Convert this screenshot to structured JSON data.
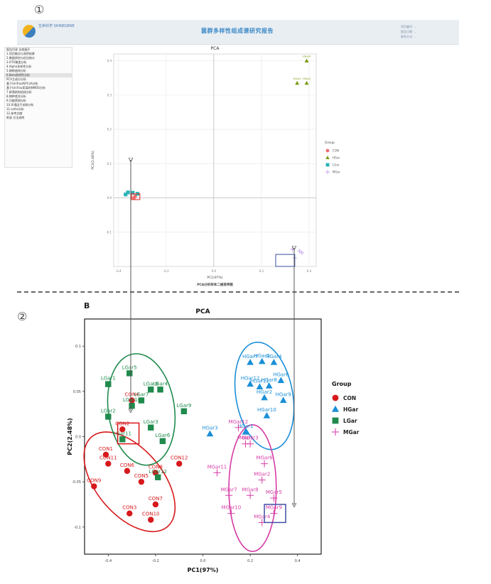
{
  "annotations": {
    "marker_one": "①",
    "marker_two": "②",
    "b_label": "B"
  },
  "header": {
    "company": "生命科学 SHINEGENE",
    "report_title": "菌群多样性组成谱研究报告",
    "info_lines": [
      "项目编号: ...",
      "报告日期: ...",
      "联系方式: ..."
    ]
  },
  "sidebar": {
    "items": [
      "报告目录 全部展开",
      "1.项目概况与测序结果",
      "2.数据质控与优化统计",
      "3.OTU聚类分析",
      "4.Alpha多样性分析",
      "5.稀释曲线分析",
      "6.Beta多样性分析",
      "PCA主成分分析",
      "基于Unifrac的PCoA分析",
      "基于UniFrac距离的NMDS分析",
      "7.群落结构组成分析",
      "8.物种差异分析",
      "9.功能预测分析",
      "10.环境因子关联分析",
      "11.Lefse分析",
      "12.参考文献",
      "附录 方法说明"
    ],
    "active_index": 6
  },
  "colors": {
    "CON": "#d7191c",
    "HGar": "#1a8fd8",
    "LGar": "#1f8a4c",
    "MGar": "#d63ba4",
    "top_con": "#f26d6d",
    "top_hgar": "#7a9c12",
    "top_lgar": "#28b2b5",
    "top_mgar": "#c9a6f0"
  },
  "chart_data": [
    {
      "type": "scatter",
      "title": "PCA",
      "xlabel": "PC1(97%)",
      "ylabel": "PC2(2.48%)",
      "caption": "PCA分析样本二维排序图",
      "xlim": [
        -0.42,
        0.43
      ],
      "ylim": [
        -0.2,
        0.42
      ],
      "xticks": [
        -0.4,
        -0.2,
        0.0,
        0.2,
        0.4
      ],
      "xtick_labels": [
        "-0.4",
        "-0.2",
        "0.0",
        "0.2",
        "0.4"
      ],
      "yticks": [
        -0.1,
        0.0,
        0.1,
        0.2,
        0.3,
        0.4
      ],
      "ytick_labels": [
        "-0.1",
        "0.0",
        "0.1",
        "0.2",
        "0.3",
        "0.4"
      ],
      "grid": true,
      "legend": {
        "title": "Group",
        "position": "right",
        "entries": [
          "CON",
          "HGar",
          "LGar",
          "MGar"
        ]
      },
      "series": [
        {
          "name": "CON",
          "points": [
            {
              "x": -0.335,
              "y": 0.0
            },
            {
              "x": -0.33,
              "y": 0.005
            }
          ]
        },
        {
          "name": "HGar",
          "points": [
            {
              "x": 0.39,
              "y": 0.4
            },
            {
              "x": 0.35,
              "y": 0.335
            },
            {
              "x": 0.39,
              "y": 0.335
            }
          ],
          "labels": [
            "HGar4",
            "HGar1",
            "HGar2"
          ]
        },
        {
          "name": "LGar",
          "points": [
            {
              "x": -0.37,
              "y": 0.01
            },
            {
              "x": -0.34,
              "y": 0.015
            },
            {
              "x": -0.32,
              "y": 0.012
            },
            {
              "x": -0.36,
              "y": 0.016
            }
          ]
        },
        {
          "name": "MGar",
          "points": [
            {
              "x": 0.33,
              "y": -0.15
            },
            {
              "x": 0.36,
              "y": -0.155
            },
            {
              "x": 0.34,
              "y": -0.175
            },
            {
              "x": 0.37,
              "y": -0.16
            }
          ]
        }
      ],
      "highlights": [
        {
          "name": "con-box",
          "x": [
            -0.345,
            -0.31
          ],
          "y": [
            -0.005,
            0.012
          ]
        },
        {
          "name": "mgar-box",
          "x": [
            0.26,
            0.34
          ],
          "y": [
            -0.2,
            -0.165
          ]
        }
      ]
    },
    {
      "type": "scatter",
      "title": "PCA",
      "xlabel": "PC1(97%)",
      "ylabel": "PC2(2.48%)",
      "xlim": [
        -0.5,
        0.5
      ],
      "ylim": [
        -0.13,
        0.13
      ],
      "xticks": [
        -0.4,
        -0.2,
        0.0,
        0.2,
        0.4
      ],
      "xtick_labels": [
        "-0.4",
        "-0.2",
        "0.0",
        "0.2",
        "0.4"
      ],
      "yticks": [
        -0.1,
        -0.05,
        0.0,
        0.05,
        0.1
      ],
      "ytick_labels": [
        "-0.1",
        "-0.05",
        "0.0",
        "0.05",
        "0.1"
      ],
      "grid": false,
      "legend": {
        "title": "Group",
        "position": "right",
        "entries": [
          "CON",
          "HGar",
          "LGar",
          "MGar"
        ]
      },
      "series": [
        {
          "name": "CON",
          "points": [
            {
              "label": "CON1",
              "x": -0.41,
              "y": -0.02
            },
            {
              "label": "CON2",
              "x": -0.34,
              "y": 0.008
            },
            {
              "label": "CON3",
              "x": -0.31,
              "y": -0.085
            },
            {
              "label": "CON4",
              "x": -0.3,
              "y": 0.04
            },
            {
              "label": "CON5",
              "x": -0.26,
              "y": -0.05
            },
            {
              "label": "CON6",
              "x": -0.32,
              "y": -0.038
            },
            {
              "label": "CON7",
              "x": -0.2,
              "y": -0.075
            },
            {
              "label": "CON8",
              "x": -0.2,
              "y": -0.04
            },
            {
              "label": "CON9",
              "x": -0.46,
              "y": -0.055
            },
            {
              "label": "CON10",
              "x": -0.22,
              "y": -0.092
            },
            {
              "label": "CON11",
              "x": -0.4,
              "y": -0.03
            },
            {
              "label": "CON12",
              "x": -0.1,
              "y": -0.03
            }
          ]
        },
        {
          "name": "HGar",
          "points": [
            {
              "label": "HGar1",
              "x": 0.18,
              "y": 0.005
            },
            {
              "label": "HGar2",
              "x": 0.26,
              "y": 0.043
            },
            {
              "label": "HGar3",
              "x": 0.03,
              "y": 0.003
            },
            {
              "label": "HGar4",
              "x": 0.3,
              "y": 0.082
            },
            {
              "label": "HGar5",
              "x": 0.25,
              "y": 0.083
            },
            {
              "label": "HGar6",
              "x": 0.33,
              "y": 0.062
            },
            {
              "label": "HGar7",
              "x": 0.2,
              "y": 0.082
            },
            {
              "label": "HGar8",
              "x": 0.28,
              "y": 0.056
            },
            {
              "label": "HGar9",
              "x": 0.34,
              "y": 0.04
            },
            {
              "label": "HGar10",
              "x": 0.27,
              "y": 0.023
            },
            {
              "label": "HGar11",
              "x": 0.24,
              "y": 0.055
            },
            {
              "label": "HGar12",
              "x": 0.2,
              "y": 0.058
            }
          ]
        },
        {
          "name": "LGar",
          "points": [
            {
              "label": "LGar1",
              "x": -0.4,
              "y": 0.058
            },
            {
              "label": "LGar2",
              "x": -0.4,
              "y": 0.022
            },
            {
              "label": "LGar3",
              "x": -0.22,
              "y": 0.01
            },
            {
              "label": "LGar4",
              "x": -0.18,
              "y": 0.052
            },
            {
              "label": "LGar5",
              "x": -0.31,
              "y": 0.07
            },
            {
              "label": "LGar6",
              "x": -0.17,
              "y": -0.005
            },
            {
              "label": "LGar7",
              "x": -0.26,
              "y": 0.04
            },
            {
              "label": "LGar8",
              "x": -0.22,
              "y": 0.052
            },
            {
              "label": "LGar9",
              "x": -0.08,
              "y": 0.028
            },
            {
              "label": "LGar10",
              "x": -0.3,
              "y": 0.034
            },
            {
              "label": "LGar11",
              "x": -0.34,
              "y": -0.003
            },
            {
              "label": "LGar12",
              "x": -0.19,
              "y": -0.045
            }
          ]
        },
        {
          "name": "MGar",
          "points": [
            {
              "label": "MGar1",
              "x": 0.18,
              "y": -0.008
            },
            {
              "label": "MGar2",
              "x": 0.25,
              "y": -0.048
            },
            {
              "label": "MGar3",
              "x": 0.2,
              "y": -0.008
            },
            {
              "label": "MGar4",
              "x": 0.25,
              "y": -0.095
            },
            {
              "label": "MGar5",
              "x": 0.3,
              "y": -0.068
            },
            {
              "label": "MGar6",
              "x": 0.26,
              "y": -0.03
            },
            {
              "label": "MGar7",
              "x": 0.11,
              "y": -0.065
            },
            {
              "label": "MGar8",
              "x": 0.2,
              "y": -0.065
            },
            {
              "label": "MGar9",
              "x": 0.3,
              "y": -0.085
            },
            {
              "label": "MGar10",
              "x": 0.12,
              "y": -0.085
            },
            {
              "label": "MGar11",
              "x": 0.06,
              "y": -0.04
            },
            {
              "label": "MGar12",
              "x": 0.15,
              "y": 0.01
            }
          ]
        }
      ],
      "ellipses": [
        {
          "group": "CON",
          "cx": -0.31,
          "cy": -0.05,
          "rx": 0.14,
          "ry": 0.065,
          "angle": -40
        },
        {
          "group": "LGar",
          "cx": -0.26,
          "cy": 0.03,
          "rx": 0.14,
          "ry": 0.062,
          "angle": -8
        },
        {
          "group": "HGar",
          "cx": 0.26,
          "cy": 0.045,
          "rx": 0.12,
          "ry": 0.06,
          "angle": -10
        },
        {
          "group": "MGar",
          "cx": 0.21,
          "cy": -0.057,
          "rx": 0.1,
          "ry": 0.07,
          "angle": 0
        }
      ],
      "highlights": [
        {
          "name": "con-box",
          "x": [
            -0.36,
            -0.27
          ],
          "y": [
            -0.008,
            0.015
          ]
        },
        {
          "name": "mgar-box",
          "x": [
            0.26,
            0.35
          ],
          "y": [
            -0.095,
            -0.075
          ]
        }
      ]
    }
  ]
}
